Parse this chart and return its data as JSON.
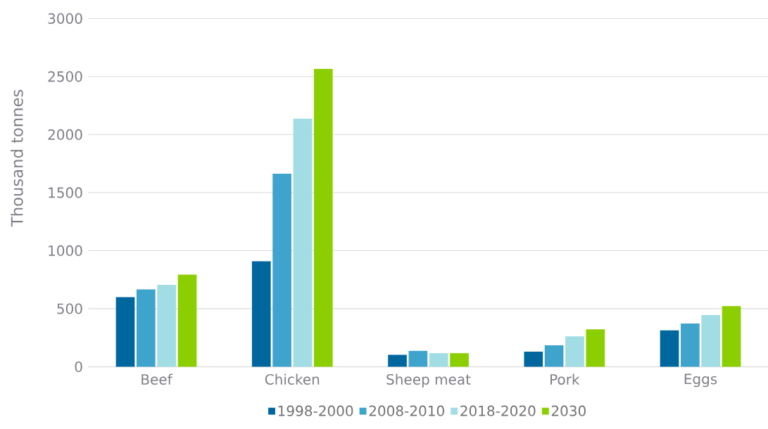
{
  "chart_data": {
    "type": "bar",
    "ylabel": "Thousand tonnes",
    "categories": [
      "Beef",
      "Chicken",
      "Sheep meat",
      "Pork",
      "Eggs"
    ],
    "series": [
      {
        "name": "1998-2000",
        "color": "#00679e",
        "values": [
          600,
          909,
          103,
          130,
          313
        ]
      },
      {
        "name": "2008-2010",
        "color": "#3fa4cc",
        "values": [
          667,
          1663,
          137,
          185,
          372
        ]
      },
      {
        "name": "2018-2020",
        "color": "#a2dce4",
        "values": [
          706,
          2137,
          117,
          262,
          445
        ]
      },
      {
        "name": "2030",
        "color": "#8ccf00",
        "values": [
          794,
          2566,
          117,
          322,
          523
        ]
      }
    ],
    "ylim": [
      0,
      3000
    ],
    "yticks": [
      0,
      500,
      1000,
      1500,
      2000,
      2500,
      3000
    ],
    "grid": "y",
    "legend": "bottom"
  }
}
